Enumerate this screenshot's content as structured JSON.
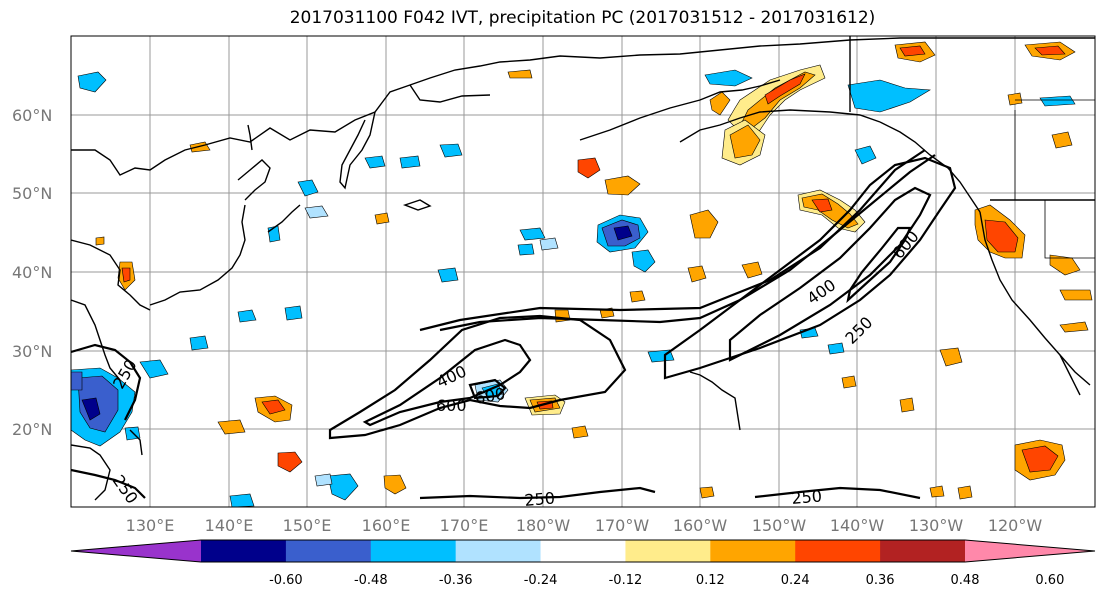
{
  "title": "2017031100 F042 IVT, precipitation PC (2017031512 - 2017031612)",
  "lat_labels": [
    "60°N",
    "50°N",
    "40°N",
    "30°N",
    "20°N"
  ],
  "lon_labels": [
    "130°E",
    "140°E",
    "150°E",
    "160°E",
    "170°E",
    "180°W",
    "170°W",
    "160°W",
    "150°W",
    "140°W",
    "130°W",
    "120°W"
  ],
  "contour_labels": {
    "l400a": "400",
    "l600a": "600",
    "l600b": "600",
    "l400b": "400",
    "l600c": "600",
    "l250a": "250",
    "l250b": "250",
    "l250c": "250",
    "l250d": "250",
    "l250e": "250"
  },
  "colorbar": {
    "colors": [
      "#9933cc",
      "#00008b",
      "#3a5fcd",
      "#00bfff",
      "#b0e2ff",
      "#ffffff",
      "#ffec8b",
      "#ffa500",
      "#ff4500",
      "#b22222",
      "#ff88aa"
    ],
    "ticks": [
      "-0.60",
      "-0.48",
      "-0.36",
      "-0.24",
      "-0.12",
      "0.12",
      "0.24",
      "0.36",
      "0.48",
      "0.60"
    ]
  }
}
